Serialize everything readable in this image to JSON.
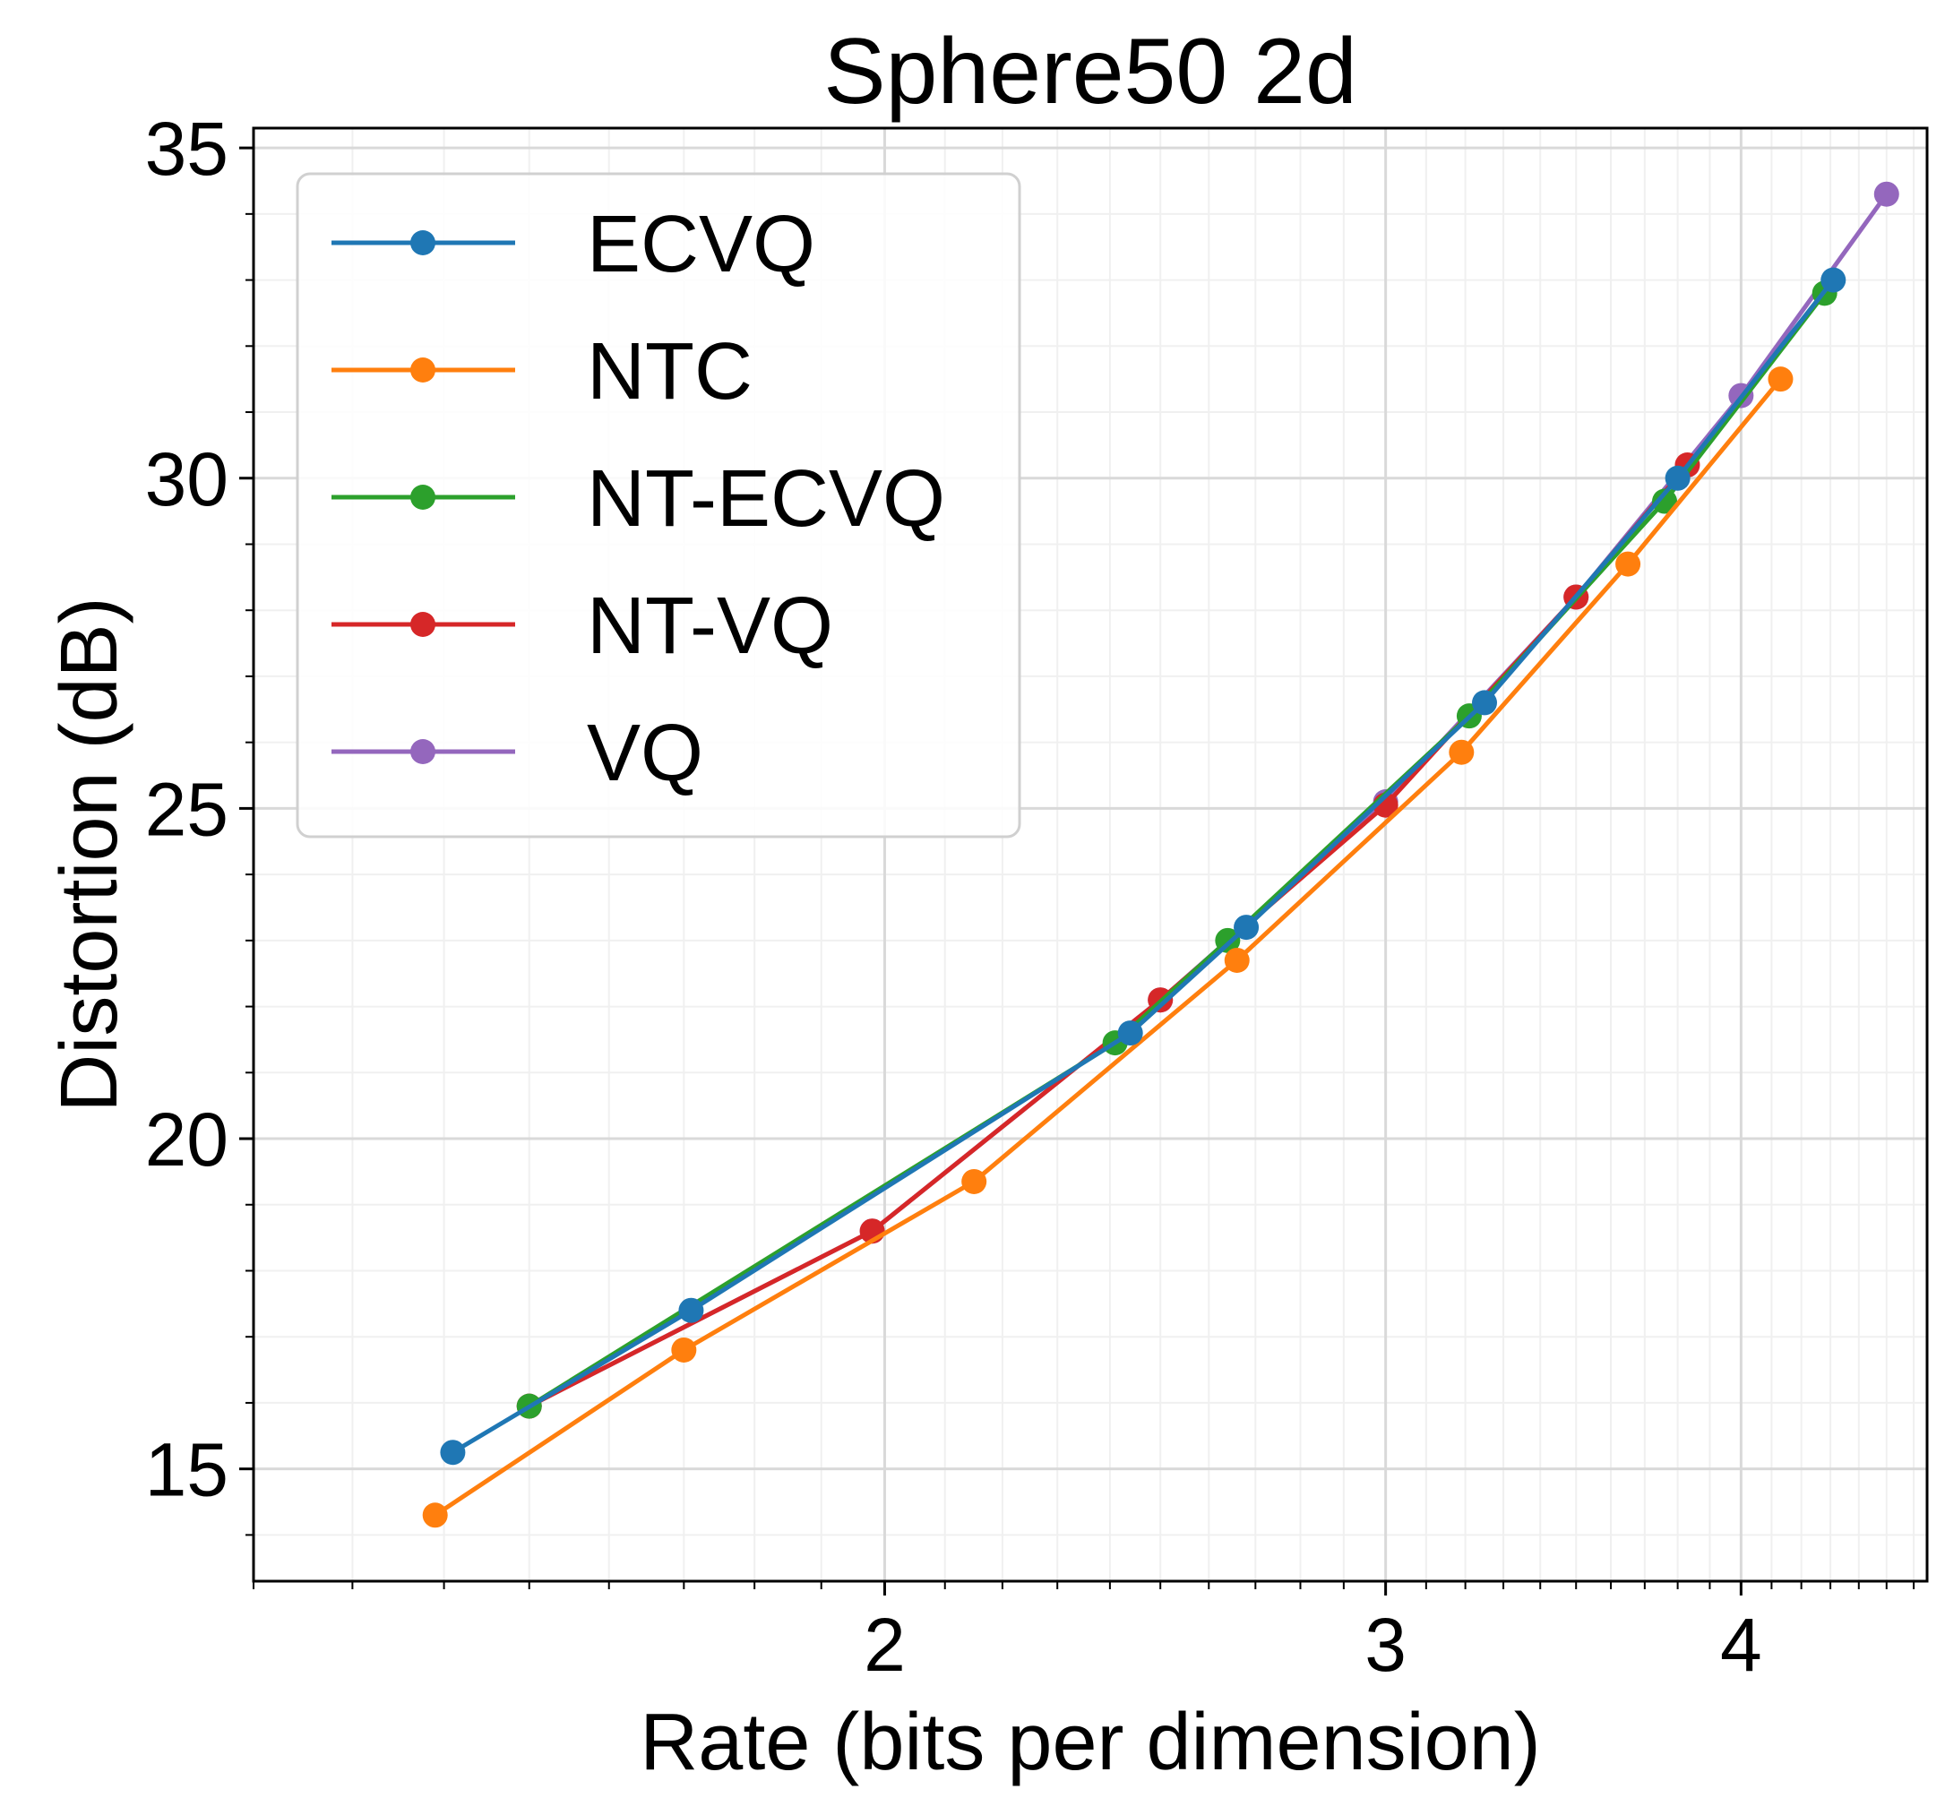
{
  "chart_data": {
    "type": "line",
    "title": "Sphere50 2d",
    "xlabel": "Rate (bits per dimension)",
    "ylabel": "Distortion (dB)",
    "xscale": "log",
    "xlim": [
      1.2,
      4.65
    ],
    "ylim": [
      13.3,
      35.3
    ],
    "xticks": [
      2,
      3,
      4
    ],
    "xtick_labels": [
      "2",
      "3",
      "4"
    ],
    "yticks": [
      15,
      20,
      25,
      30,
      35
    ],
    "ytick_labels": [
      "15",
      "20",
      "25",
      "30",
      "35"
    ],
    "grid": true,
    "minor_grid": true,
    "legend_position": "top-left",
    "marker": "circle",
    "series": [
      {
        "name": "ECVQ",
        "color": "#1f77b4",
        "points": [
          [
            1.41,
            15.25
          ],
          [
            1.71,
            17.4
          ],
          [
            2.44,
            21.6
          ],
          [
            2.68,
            23.2
          ],
          [
            3.25,
            26.6
          ],
          [
            3.8,
            30.0
          ],
          [
            4.31,
            33.0
          ]
        ]
      },
      {
        "name": "NTC",
        "color": "#ff7f0e",
        "points": [
          [
            1.39,
            14.3
          ],
          [
            1.7,
            16.8
          ],
          [
            2.15,
            19.35
          ],
          [
            2.66,
            22.7
          ],
          [
            3.19,
            25.85
          ],
          [
            3.65,
            28.7
          ],
          [
            4.13,
            31.5
          ]
        ]
      },
      {
        "name": "NT-ECVQ",
        "color": "#2ca02c",
        "points": [
          [
            1.5,
            15.95
          ],
          [
            2.41,
            21.45
          ],
          [
            2.64,
            23.0
          ],
          [
            3.21,
            26.4
          ],
          [
            3.76,
            29.65
          ],
          [
            4.28,
            32.8
          ]
        ]
      },
      {
        "name": "NT-VQ",
        "color": "#d62728",
        "points": [
          [
            1.5,
            15.95
          ],
          [
            1.98,
            18.6
          ],
          [
            2.5,
            22.1
          ],
          [
            3.0,
            25.05
          ],
          [
            3.5,
            28.2
          ],
          [
            3.83,
            30.2
          ]
        ]
      },
      {
        "name": "VQ",
        "color": "#9467bd",
        "points": [
          [
            1.5,
            15.95
          ],
          [
            1.98,
            18.6
          ],
          [
            2.5,
            22.1
          ],
          [
            3.0,
            25.1
          ],
          [
            3.5,
            28.2
          ],
          [
            4.0,
            31.25
          ],
          [
            4.5,
            34.3
          ]
        ]
      }
    ]
  }
}
